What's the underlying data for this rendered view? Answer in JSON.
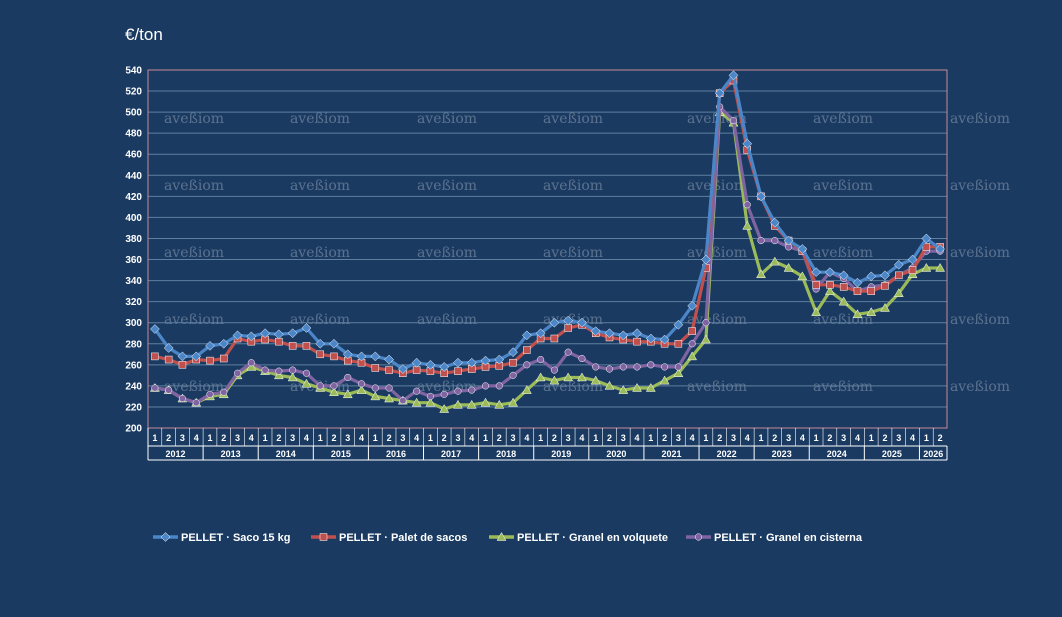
{
  "chart_data": {
    "type": "line",
    "unit_label": "€/ton",
    "ylim": [
      200,
      540
    ],
    "y_ticks": [
      200,
      220,
      240,
      260,
      280,
      300,
      320,
      340,
      360,
      380,
      400,
      420,
      440,
      460,
      480,
      500,
      520,
      540
    ],
    "grid": true,
    "watermark": "aveßiom",
    "years": [
      "2012",
      "2013",
      "2014",
      "2015",
      "2016",
      "2017",
      "2018",
      "2019",
      "2020",
      "2021",
      "2022",
      "2023",
      "2024",
      "2025",
      "2026"
    ],
    "quarters": [
      "1",
      "2",
      "3",
      "4"
    ],
    "x": [
      "2012-1",
      "2012-2",
      "2012-3",
      "2012-4",
      "2013-1",
      "2013-2",
      "2013-3",
      "2013-4",
      "2014-1",
      "2014-2",
      "2014-3",
      "2014-4",
      "2015-1",
      "2015-2",
      "2015-3",
      "2015-4",
      "2016-1",
      "2016-2",
      "2016-3",
      "2016-4",
      "2017-1",
      "2017-2",
      "2017-3",
      "2017-4",
      "2018-1",
      "2018-2",
      "2018-3",
      "2018-4",
      "2019-1",
      "2019-2",
      "2019-3",
      "2019-4",
      "2020-1",
      "2020-2",
      "2020-3",
      "2020-4",
      "2021-1",
      "2021-2",
      "2021-3",
      "2021-4",
      "2022-1",
      "2022-2",
      "2022-3",
      "2022-4",
      "2023-1",
      "2023-2",
      "2023-3",
      "2023-4",
      "2024-1",
      "2024-2",
      "2024-3",
      "2024-4",
      "2025-1",
      "2025-2",
      "2025-3",
      "2025-4",
      "2026-1",
      "2026-2"
    ],
    "legend_position": "bottom",
    "series": [
      {
        "name": "PELLET · Saco 15 kg",
        "color": "#4a86c8",
        "marker": "diamond",
        "values": [
          294,
          276,
          268,
          268,
          278,
          280,
          288,
          287,
          290,
          289,
          290,
          295,
          280,
          280,
          270,
          268,
          268,
          265,
          256,
          262,
          260,
          258,
          262,
          262,
          264,
          265,
          272,
          288,
          290,
          300,
          302,
          300,
          292,
          290,
          288,
          290,
          285,
          284,
          298,
          316,
          360,
          518,
          535,
          470,
          420,
          395,
          378,
          370,
          348,
          348,
          345,
          338,
          344,
          345,
          355,
          360,
          380,
          370
        ]
      },
      {
        "name": "PELLET ·  Palet de sacos",
        "color": "#c0504d",
        "marker": "square",
        "values": [
          268,
          265,
          260,
          265,
          264,
          266,
          285,
          282,
          284,
          282,
          278,
          278,
          270,
          268,
          264,
          262,
          257,
          255,
          252,
          255,
          254,
          252,
          254,
          256,
          258,
          259,
          262,
          274,
          285,
          285,
          295,
          298,
          290,
          286,
          284,
          282,
          282,
          280,
          280,
          292,
          352,
          518,
          530,
          464,
          420,
          392,
          378,
          368,
          336,
          336,
          334,
          330,
          330,
          335,
          345,
          350,
          372,
          372
        ]
      },
      {
        "name": "PELLET · Granel en volquete",
        "color": "#9bbb59",
        "marker": "triangle",
        "values": [
          238,
          236,
          228,
          224,
          230,
          232,
          250,
          258,
          254,
          250,
          248,
          242,
          238,
          234,
          232,
          236,
          230,
          228,
          226,
          224,
          224,
          218,
          222,
          222,
          224,
          222,
          224,
          236,
          248,
          245,
          248,
          248,
          245,
          240,
          236,
          238,
          238,
          245,
          252,
          268,
          284,
          500,
          490,
          392,
          346,
          358,
          352,
          344,
          310,
          330,
          320,
          308,
          310,
          314,
          328,
          346,
          352,
          352
        ]
      },
      {
        "name": "PELLET · Granel en cisterna",
        "color": "#8064a2",
        "marker": "circle",
        "values": [
          238,
          236,
          228,
          224,
          232,
          234,
          252,
          262,
          255,
          254,
          255,
          252,
          240,
          240,
          248,
          242,
          238,
          238,
          226,
          235,
          230,
          232,
          235,
          236,
          240,
          240,
          250,
          260,
          265,
          255,
          272,
          266,
          258,
          256,
          258,
          258,
          260,
          258,
          258,
          280,
          300,
          505,
          492,
          412,
          378,
          378,
          372,
          368,
          332,
          348,
          342,
          330,
          334,
          336,
          345,
          352,
          368,
          368
        ]
      }
    ]
  }
}
